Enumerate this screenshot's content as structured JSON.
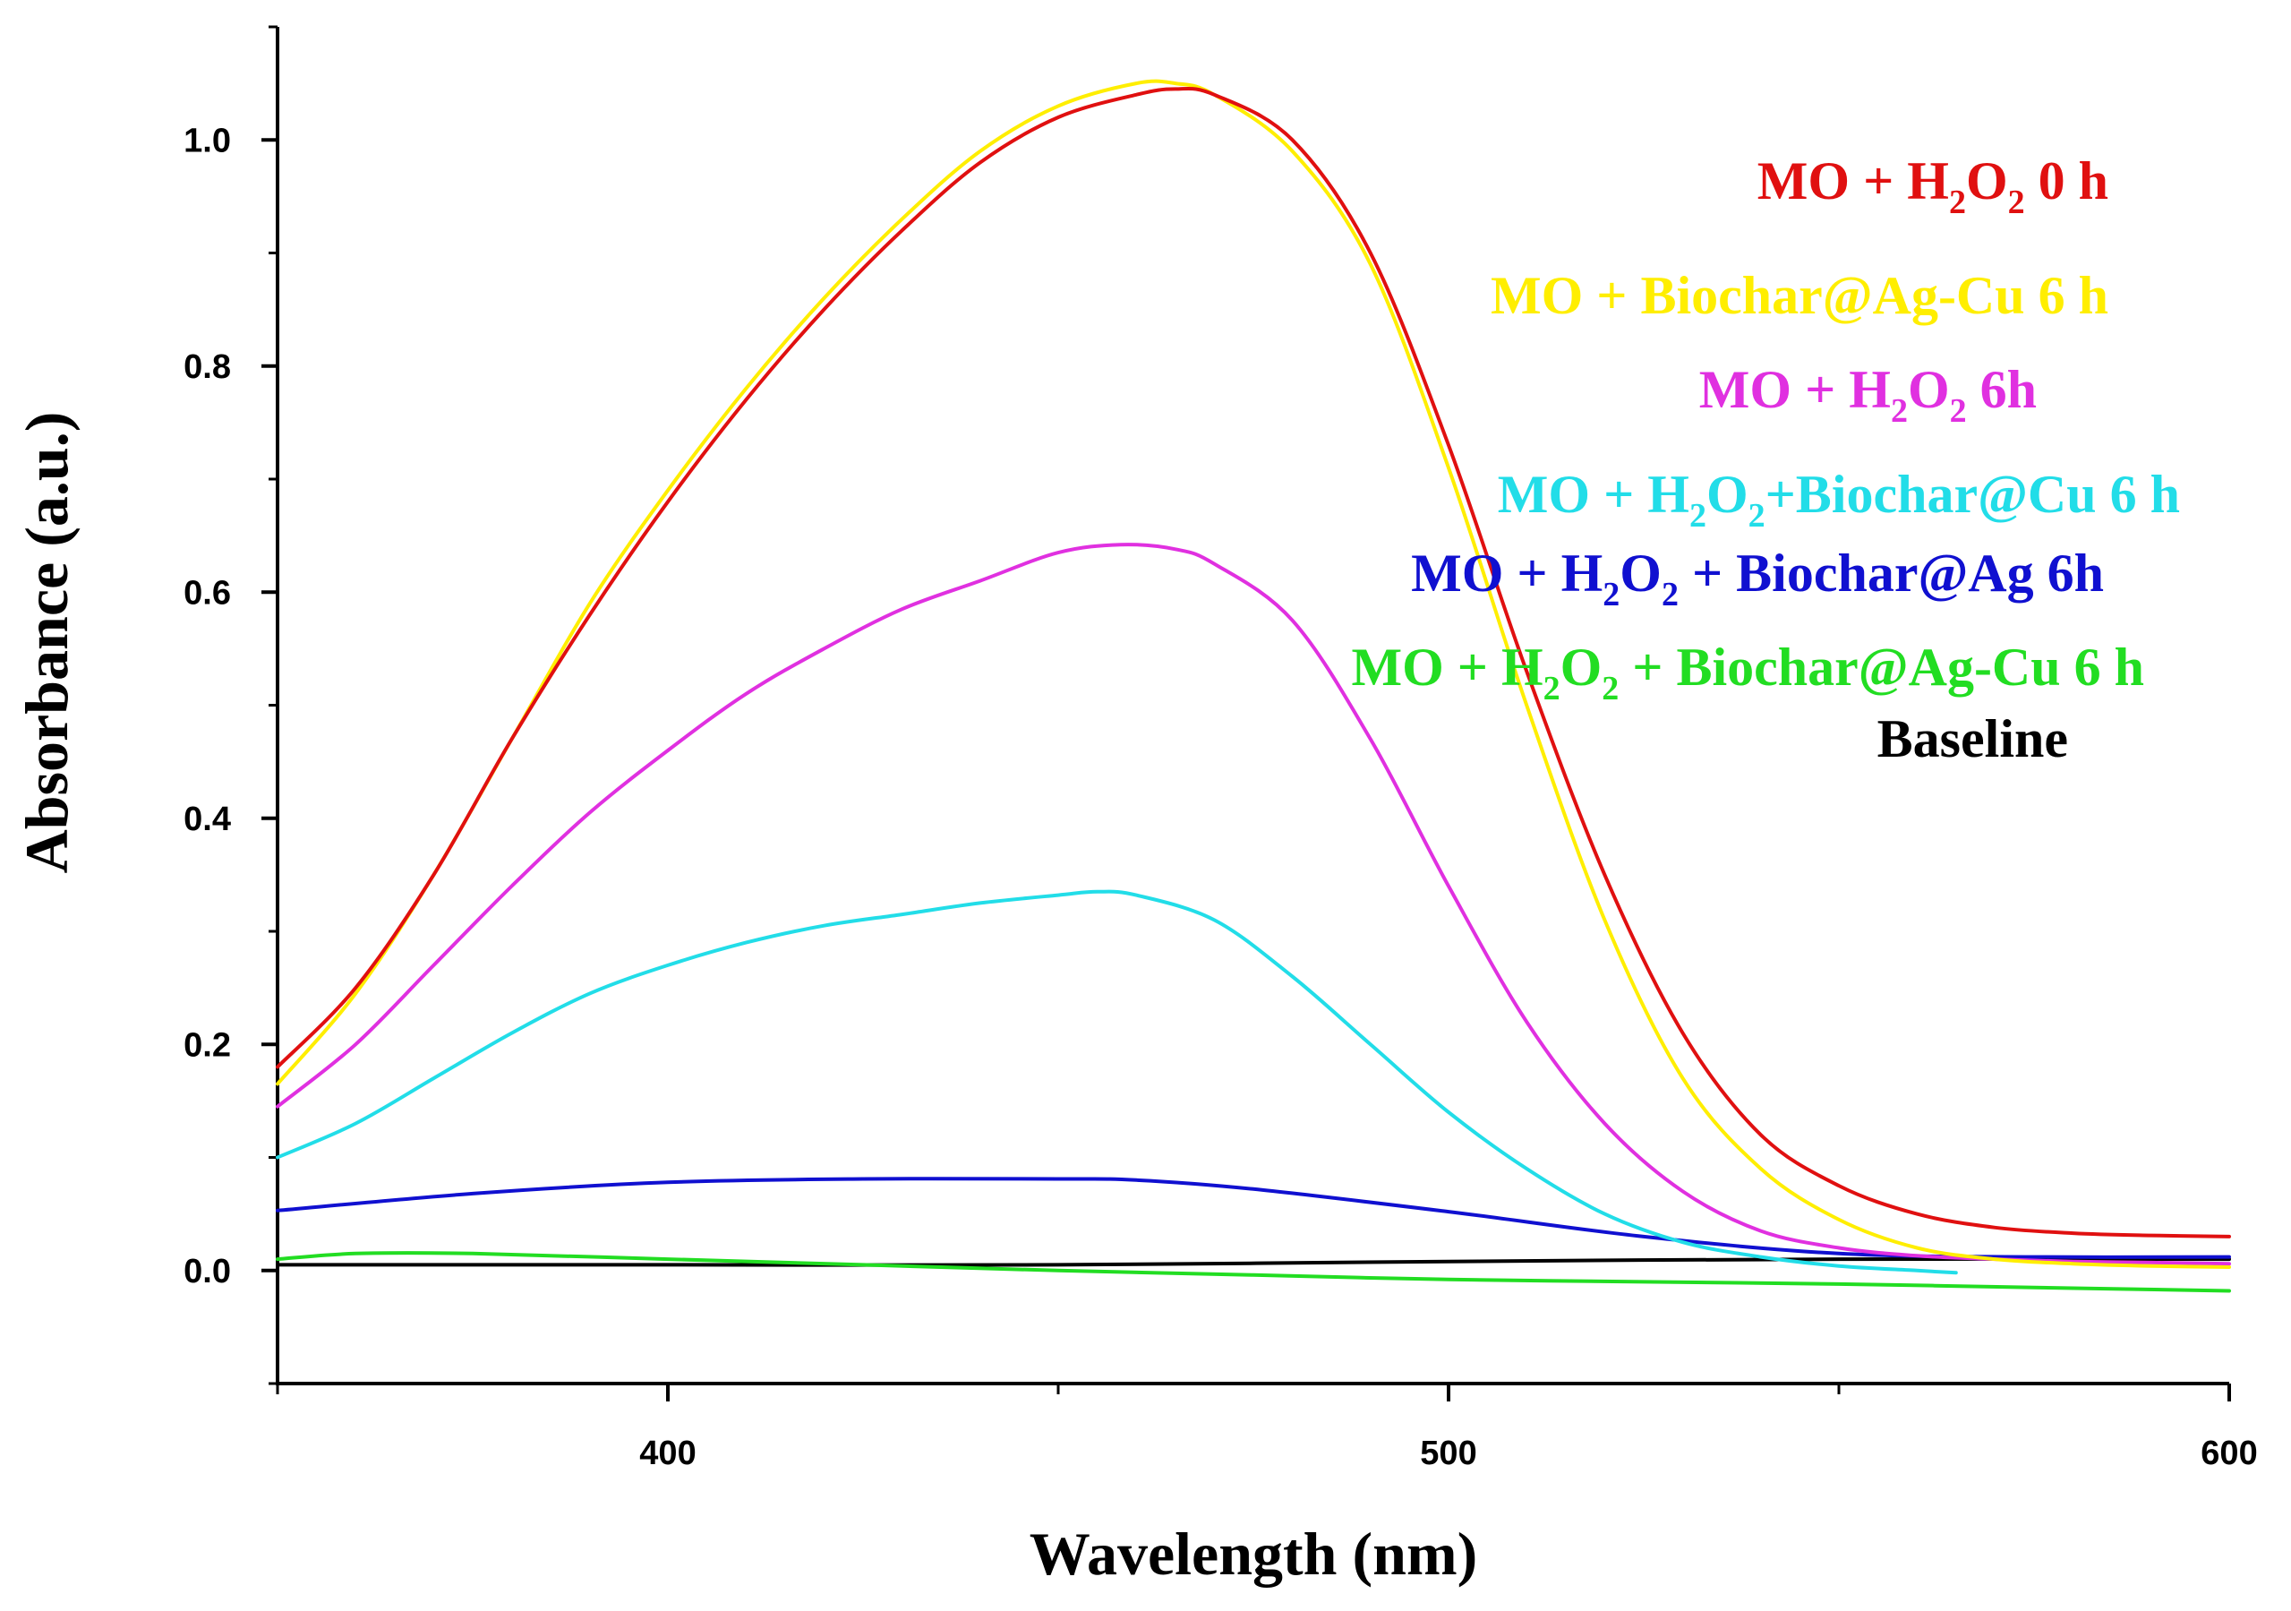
{
  "chart_data": {
    "type": "line",
    "title": "",
    "xlabel": "Wavelength (nm)",
    "ylabel": "Absorbance (a.u.)",
    "xlim": [
      350,
      600
    ],
    "ylim": [
      -0.1,
      1.1
    ],
    "xticks": [
      400,
      500,
      600
    ],
    "xtick_labels": [
      "400",
      "500",
      "600"
    ],
    "yticks": [
      0.0,
      0.2,
      0.4,
      0.6,
      0.8,
      1.0
    ],
    "ytick_labels": [
      "0.0",
      "0.2",
      "0.4",
      "0.6",
      "0.8",
      "1.0"
    ],
    "grid": false,
    "legend_placement": "top-right",
    "series": [
      {
        "name": "MO + H2O2 0 h",
        "legend": {
          "main": "MO + H",
          "sub1": "2",
          "mid": "O",
          "sub2": "2",
          "tail": " 0 h"
        },
        "color": "#e01010",
        "x": [
          350,
          360,
          370,
          380,
          390,
          400,
          410,
          420,
          430,
          440,
          450,
          460,
          465,
          470,
          480,
          490,
          500,
          510,
          520,
          530,
          540,
          550,
          560,
          570,
          580,
          590,
          600
        ],
        "y": [
          0.18,
          0.25,
          0.35,
          0.47,
          0.58,
          0.68,
          0.77,
          0.85,
          0.92,
          0.98,
          1.02,
          1.04,
          1.045,
          1.04,
          1.0,
          0.9,
          0.73,
          0.53,
          0.35,
          0.21,
          0.12,
          0.075,
          0.05,
          0.038,
          0.033,
          0.031,
          0.03
        ]
      },
      {
        "name": "MO + Biochar@Ag-Cu 6 h",
        "legend": {
          "main": "MO + Biochar@Ag-Cu 6 h"
        },
        "color": "#ffee00",
        "x": [
          350,
          360,
          370,
          380,
          390,
          400,
          410,
          420,
          430,
          440,
          450,
          460,
          465,
          470,
          480,
          490,
          500,
          510,
          520,
          530,
          540,
          550,
          560,
          570,
          580,
          590,
          600
        ],
        "y": [
          0.165,
          0.245,
          0.35,
          0.47,
          0.59,
          0.69,
          0.78,
          0.86,
          0.93,
          0.99,
          1.03,
          1.05,
          1.05,
          1.04,
          0.99,
          0.89,
          0.71,
          0.5,
          0.31,
          0.17,
          0.09,
          0.045,
          0.02,
          0.01,
          0.006,
          0.004,
          0.003
        ]
      },
      {
        "name": "MO + H2O2 6h",
        "legend": {
          "main": "MO + H",
          "sub1": "2",
          "mid": "O",
          "sub2": "2",
          "tail": "  6h"
        },
        "color": "#e030e0",
        "x": [
          350,
          360,
          370,
          380,
          390,
          400,
          410,
          420,
          430,
          440,
          450,
          458,
          465,
          470,
          480,
          490,
          500,
          510,
          520,
          530,
          540,
          550,
          560,
          570,
          580,
          590,
          600
        ],
        "y": [
          0.145,
          0.2,
          0.27,
          0.34,
          0.405,
          0.46,
          0.51,
          0.55,
          0.585,
          0.61,
          0.635,
          0.642,
          0.638,
          0.625,
          0.575,
          0.47,
          0.34,
          0.22,
          0.13,
          0.07,
          0.035,
          0.02,
          0.013,
          0.01,
          0.008,
          0.007,
          0.006
        ]
      },
      {
        "name": "MO + H2O2+Biochar@Cu 6 h",
        "legend": {
          "main": "MO + H",
          "sub1": "2",
          "mid": "O",
          "sub2": "2",
          "tail": "+Biochar@Cu 6 h"
        },
        "color": "#22dde8",
        "x": [
          350,
          360,
          370,
          380,
          390,
          400,
          410,
          420,
          430,
          440,
          450,
          455,
          460,
          470,
          480,
          490,
          500,
          510,
          520,
          530,
          540,
          550,
          560,
          565
        ],
        "y": [
          0.1,
          0.13,
          0.17,
          0.21,
          0.245,
          0.27,
          0.29,
          0.305,
          0.315,
          0.325,
          0.332,
          0.335,
          0.332,
          0.31,
          0.26,
          0.2,
          0.14,
          0.09,
          0.05,
          0.025,
          0.012,
          0.004,
          0.0,
          -0.002
        ]
      },
      {
        "name": "MO + H2O2 + Biochar@Ag 6h",
        "legend": {
          "main": "MO + H",
          "sub1": "2",
          "mid": "O",
          "sub2": "2",
          "tail": " + Biochar@Ag  6h"
        },
        "color": "#1010d0",
        "x": [
          350,
          375,
          400,
          425,
          450,
          460,
          475,
          500,
          525,
          550,
          575,
          600
        ],
        "y": [
          0.053,
          0.068,
          0.078,
          0.081,
          0.081,
          0.08,
          0.072,
          0.052,
          0.03,
          0.015,
          0.012,
          0.012
        ]
      },
      {
        "name": "MO + H2O2 + Biochar@Ag-Cu 6 h",
        "legend": {
          "main": "MO + H",
          "sub1": "2",
          "mid": "O",
          "sub2": "2",
          "tail": " + Biochar@Ag-Cu   6 h"
        },
        "color": "#22dd22",
        "x": [
          350,
          360,
          375,
          400,
          425,
          450,
          475,
          500,
          525,
          550,
          575,
          600
        ],
        "y": [
          0.01,
          0.015,
          0.015,
          0.01,
          0.005,
          0.0,
          -0.004,
          -0.008,
          -0.01,
          -0.012,
          -0.015,
          -0.018
        ]
      },
      {
        "name": "Baseline",
        "legend": {
          "main": "Baseline"
        },
        "color": "#000000",
        "x": [
          350,
          400,
          450,
          500,
          550,
          600
        ],
        "y": [
          0.005,
          0.005,
          0.005,
          0.008,
          0.01,
          0.01
        ]
      }
    ]
  }
}
